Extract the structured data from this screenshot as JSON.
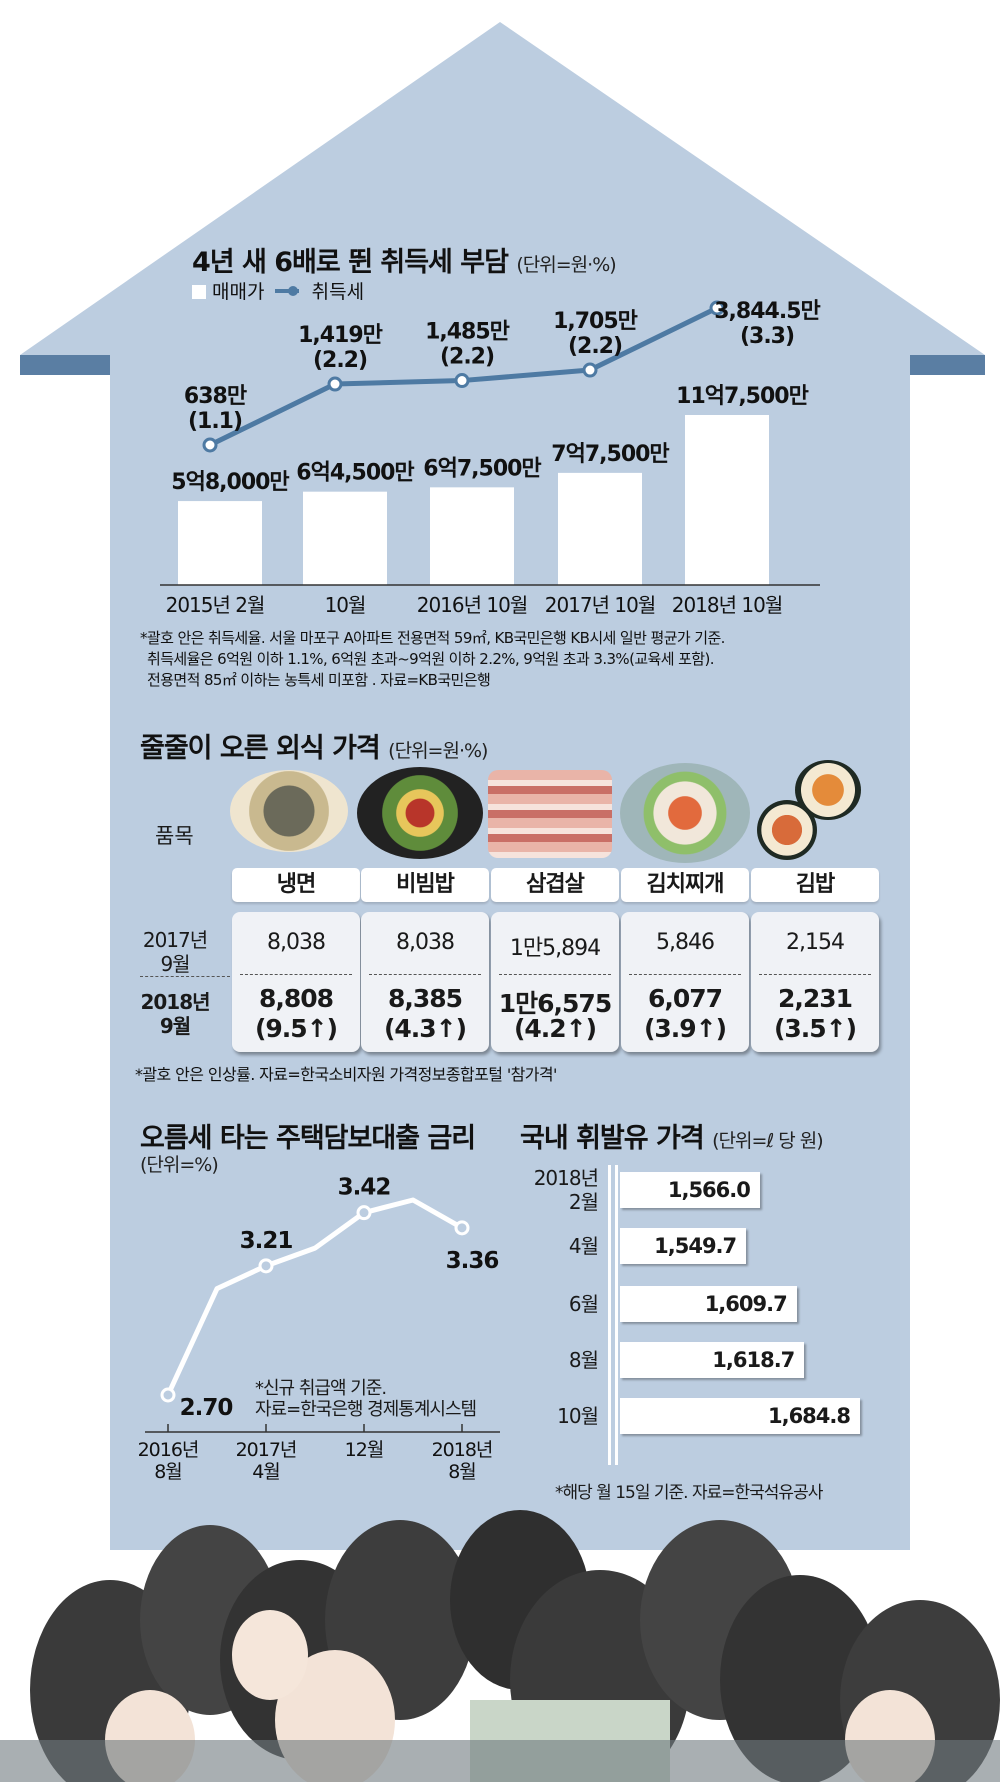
{
  "colors": {
    "house": "#bccde0",
    "roof_edge": "#5a7ea3",
    "line": "#4e7aa3",
    "bar": "#ffffff"
  },
  "chart1": {
    "title": "4년 새 6배로 뛴 취득세 부담",
    "unit": "(단위=원·%)",
    "legend": {
      "bar": "매매가",
      "line": "취득세"
    },
    "notes": [
      "*괄호 안은 취득세율. 서울 마포구 A아파트 전용면적 59㎡, KB국민은행 KB시세 일반 평균가 기준.",
      "취득세율은 6억원 이하 1.1%, 6억원 초과~9억원 이하 2.2%, 9억원 초과 3.3%(교육세 포함).",
      "전용면적 85㎡ 이하는 농특세 미포함 . 자료=KB국민은행"
    ]
  },
  "chart2": {
    "title": "줄줄이 오른 외식 가격",
    "unit": "(단위=원·%)",
    "item_label": "품목",
    "row1_label": [
      "2017년",
      "9월"
    ],
    "row2_label": [
      "2018년",
      "9월"
    ],
    "items": [
      {
        "name": "냉면",
        "p2017": "8,038",
        "p2018": "8,808",
        "rate": "(9.5↑)"
      },
      {
        "name": "비빔밥",
        "p2017": "8,038",
        "p2018": "8,385",
        "rate": "(4.3↑)"
      },
      {
        "name": "삼겹살",
        "p2017": "1만5,894",
        "p2018": "1만6,575",
        "rate": "(4.2↑)"
      },
      {
        "name": "김치찌개",
        "p2017": "5,846",
        "p2018": "6,077",
        "rate": "(3.9↑)"
      },
      {
        "name": "김밥",
        "p2017": "2,154",
        "p2018": "2,231",
        "rate": "(3.5↑)"
      }
    ],
    "note": "*괄호 안은 인상률. 자료=한국소비자원 가격정보종합포털 '참가격'"
  },
  "chart3": {
    "title": "오름세 타는 주택담보대출 금리",
    "unit": "(단위=%)",
    "notes": [
      "*신규 취급액 기준.",
      "자료=한국은행 경제통계시스템"
    ],
    "ticks": [
      [
        "2016년",
        "8월"
      ],
      [
        "2017년",
        "4월"
      ],
      [
        "12월"
      ],
      [
        "2018년",
        "8월"
      ]
    ],
    "labels": [
      "2.70",
      "3.21",
      "3.42",
      "3.36"
    ]
  },
  "chart4": {
    "title": "국내 휘발유 가격",
    "unit": "(단위=ℓ 당 원)",
    "note": "*해당  월 15일 기준. 자료=한국석유공사"
  },
  "chart_data": [
    {
      "type": "bar",
      "title": "4년 새 6배로 뛴 취득세 부담",
      "categories": [
        "2015년 2월",
        "10월",
        "2016년 10월",
        "2017년 10월",
        "2018년 10월"
      ],
      "series": [
        {
          "name": "매매가",
          "values": [
            580000000,
            645000000,
            675000000,
            775000000,
            1175000000
          ],
          "labels": [
            "5억8,000만",
            "6억4,500만",
            "6억7,500만",
            "7억7,500만",
            "11억7,500만"
          ]
        },
        {
          "name": "취득세",
          "type": "line",
          "values": [
            6380000,
            14190000,
            14850000,
            17050000,
            38445000
          ],
          "labels": [
            "638만",
            "1,419만",
            "1,485만",
            "1,705만",
            "3,844.5만"
          ],
          "rates": [
            1.1,
            2.2,
            2.2,
            2.2,
            3.3
          ],
          "rate_labels": [
            "(1.1)",
            "(2.2)",
            "(2.2)",
            "(2.2)",
            "(3.3)"
          ]
        }
      ]
    },
    {
      "type": "table",
      "title": "줄줄이 오른 외식 가격",
      "columns": [
        "냉면",
        "비빔밥",
        "삼겹살",
        "김치찌개",
        "김밥"
      ],
      "rows": [
        {
          "label": "2017년 9월",
          "values": [
            8038,
            8038,
            15894,
            5846,
            2154
          ]
        },
        {
          "label": "2018년 9월",
          "values": [
            8808,
            8385,
            16575,
            6077,
            2231
          ],
          "rates": [
            9.5,
            4.3,
            4.2,
            3.9,
            3.5
          ]
        }
      ]
    },
    {
      "type": "line",
      "title": "오름세 타는 주택담보대출 금리",
      "x": [
        "2016년 8월",
        "2016년 12월",
        "2017년 4월",
        "2017년 8월",
        "2017년 12월",
        "2018년 4월",
        "2018년 8월"
      ],
      "values": [
        2.7,
        3.12,
        3.21,
        3.28,
        3.42,
        3.47,
        3.36
      ],
      "labeled_points": {
        "2016년 8월": 2.7,
        "2017년 4월": 3.21,
        "2017년 12월": 3.42,
        "2018년 8월": 3.36
      }
    },
    {
      "type": "bar",
      "orientation": "horizontal",
      "title": "국내 휘발유 가격",
      "categories": [
        "2018년 2월",
        "4월",
        "6월",
        "8월",
        "10월"
      ],
      "values": [
        1566.0,
        1549.7,
        1609.7,
        1618.7,
        1684.8
      ],
      "labels": [
        "1,566.0",
        "1,549.7",
        "1,609.7",
        "1,618.7",
        "1,684.8"
      ]
    }
  ]
}
